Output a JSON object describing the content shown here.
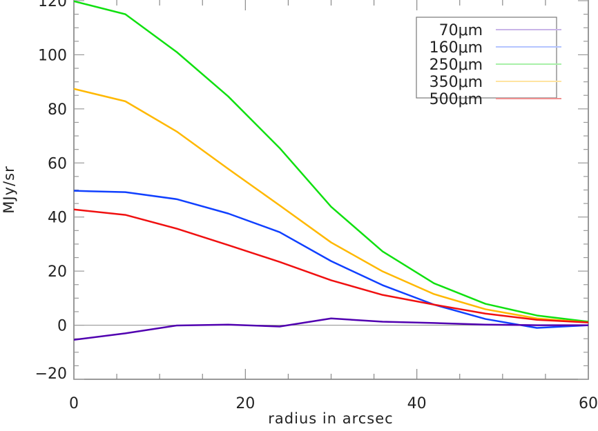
{
  "chart_data": {
    "type": "line",
    "title": "",
    "xlabel": "radius in arcsec",
    "ylabel": "MJy/sr",
    "xlim": [
      0,
      60
    ],
    "ylim": [
      -20,
      120
    ],
    "x_ticks": [
      0,
      20,
      40,
      60
    ],
    "y_ticks": [
      -20,
      0,
      20,
      40,
      60,
      80,
      100,
      120
    ],
    "grid": false,
    "zero_line": true,
    "legend_placement": "top-right",
    "x": [
      0,
      6,
      12,
      18,
      24,
      30,
      36,
      42,
      48,
      54,
      60
    ],
    "series": [
      {
        "name": "70μm",
        "color": "#5000b0",
        "legend_color": "#c8b4e8",
        "values": [
          -5.4,
          -3.0,
          -0.1,
          0.2,
          -0.5,
          2.5,
          1.3,
          0.8,
          0.2,
          0.0,
          0.0
        ]
      },
      {
        "name": "160μm",
        "color": "#1040ff",
        "legend_color": "#b4c4ff",
        "values": [
          49.7,
          49.2,
          46.6,
          41.3,
          34.4,
          23.7,
          14.8,
          7.6,
          2.3,
          -1.0,
          0.0
        ]
      },
      {
        "name": "250μm",
        "color": "#10e010",
        "legend_color": "#a8f0a8",
        "values": [
          119.8,
          115.0,
          101.0,
          84.6,
          65.5,
          43.8,
          27.3,
          15.5,
          7.9,
          3.6,
          1.3
        ]
      },
      {
        "name": "350μm",
        "color": "#ffb800",
        "legend_color": "#ffe4a0",
        "values": [
          87.4,
          82.8,
          71.6,
          57.8,
          44.3,
          30.6,
          19.9,
          11.5,
          5.9,
          2.5,
          1.0
        ]
      },
      {
        "name": "500μm",
        "color": "#f01010",
        "legend_color": "#f09090",
        "values": [
          42.8,
          40.8,
          35.7,
          29.6,
          23.4,
          16.6,
          11.2,
          7.6,
          4.3,
          2.0,
          1.0
        ]
      }
    ]
  }
}
